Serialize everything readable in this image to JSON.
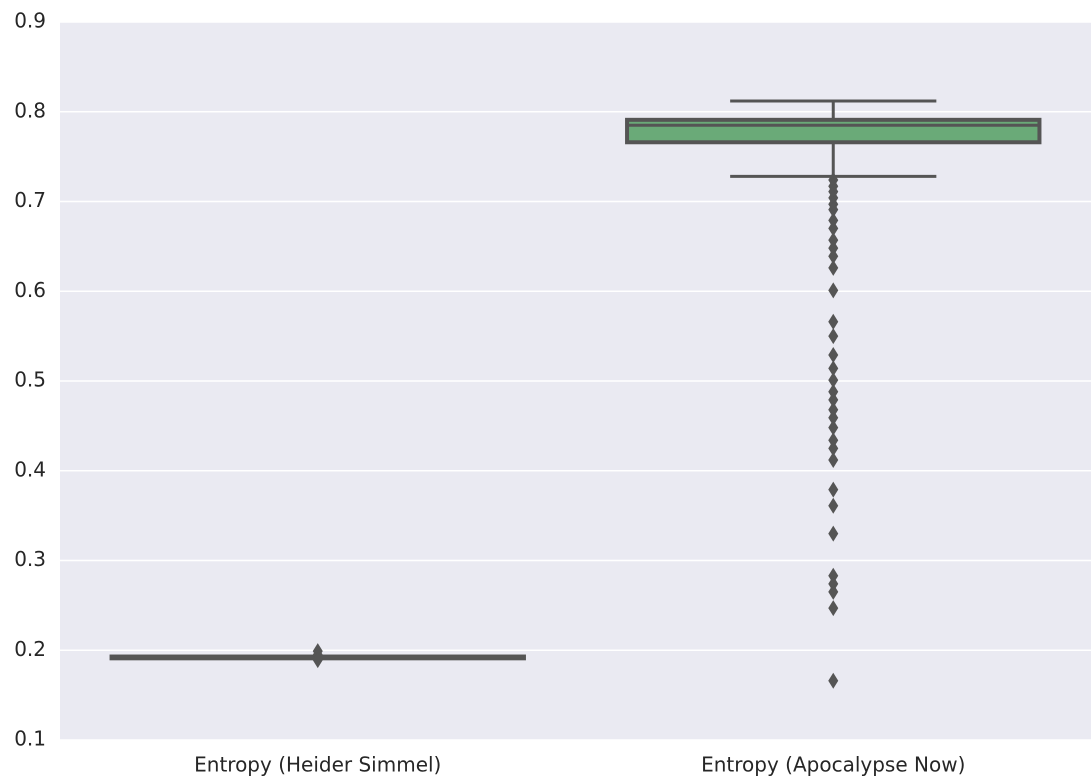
{
  "chart_data": {
    "type": "box",
    "categories": [
      "Entropy (Heider Simmel)",
      "Entropy (Apocalypse Now)"
    ],
    "series": [
      {
        "color": "#4c72b0",
        "whisker_low": 0.191,
        "q1": 0.191,
        "median": 0.192,
        "q3": 0.193,
        "whisker_high": 0.193,
        "outliers": [
          0.199,
          0.195,
          0.189
        ]
      },
      {
        "color": "#6aaa78",
        "whisker_low": 0.728,
        "q1": 0.766,
        "median": 0.785,
        "q3": 0.791,
        "whisker_high": 0.812,
        "outliers": [
          0.724,
          0.717,
          0.711,
          0.704,
          0.697,
          0.691,
          0.679,
          0.67,
          0.657,
          0.648,
          0.639,
          0.626,
          0.601,
          0.566,
          0.55,
          0.529,
          0.514,
          0.501,
          0.488,
          0.479,
          0.468,
          0.459,
          0.448,
          0.434,
          0.425,
          0.412,
          0.379,
          0.361,
          0.33,
          0.283,
          0.274,
          0.265,
          0.247,
          0.166
        ]
      }
    ],
    "ylim": [
      0.1,
      0.9
    ],
    "yticks": [
      0.1,
      0.2,
      0.3,
      0.4,
      0.5,
      0.6,
      0.7,
      0.8,
      0.9
    ],
    "grid": true
  }
}
